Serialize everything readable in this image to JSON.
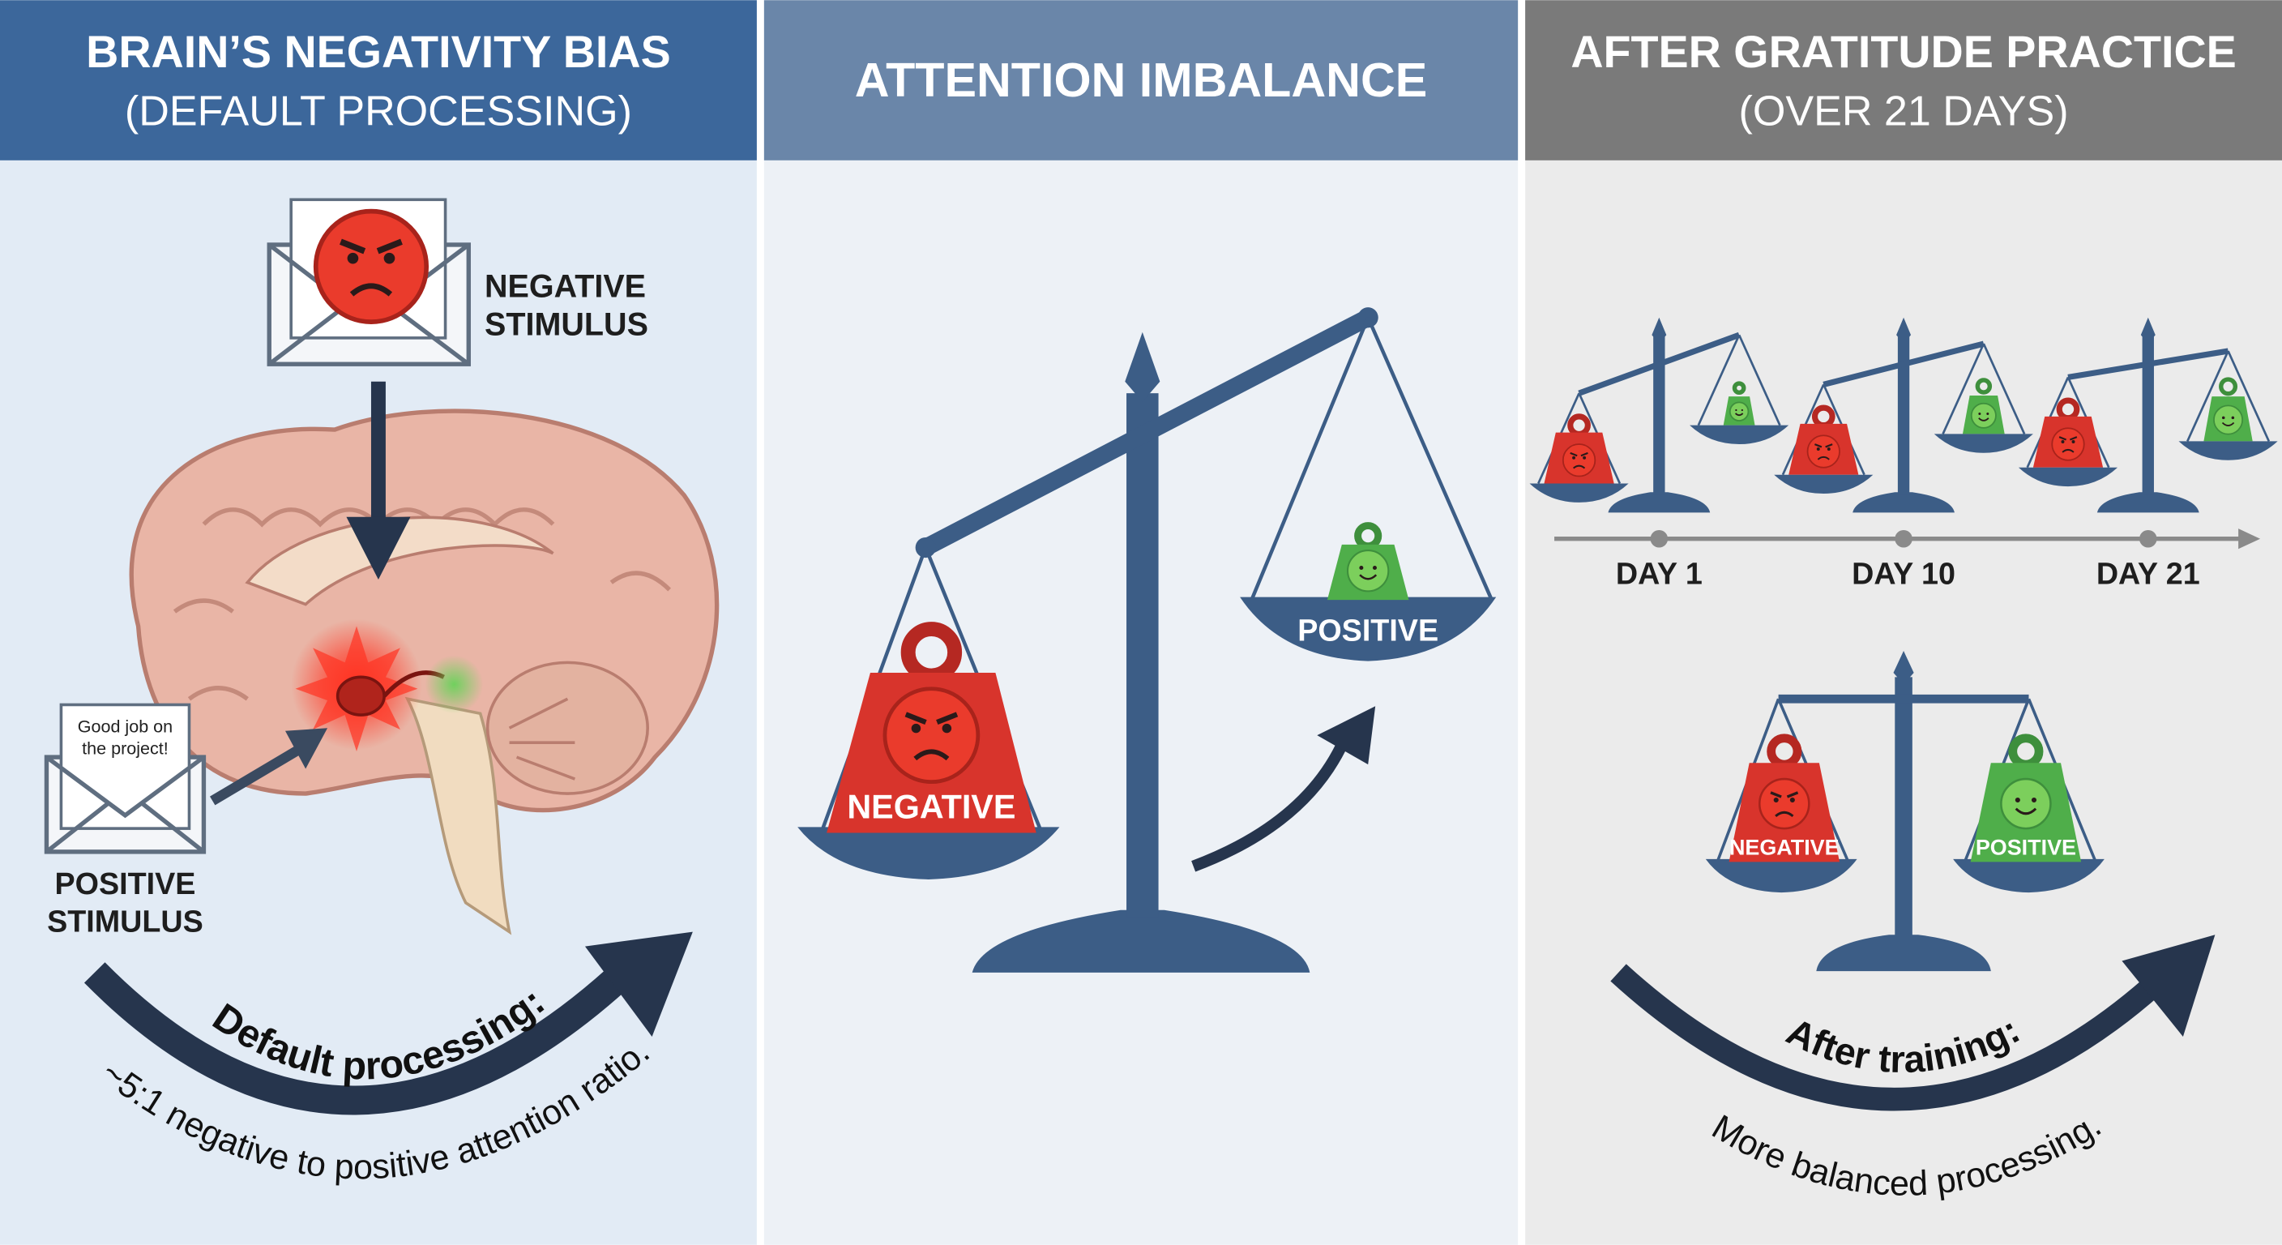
{
  "panels": [
    {
      "title": "BRAIN’S NEGATIVITY BIAS",
      "subtitle": "(DEFAULT PROCESSING)",
      "negative_stimulus": [
        "NEGATIVE",
        "STIMULUS"
      ],
      "message": [
        "Good job on",
        "the project!"
      ],
      "positive_stimulus": [
        "POSITIVE",
        "STIMULUS"
      ],
      "caption_heading": "Default processing:",
      "caption_text": "~5:1 negative to positive attention ratio."
    },
    {
      "title": "ATTENTION IMBALANCE",
      "negative_weight": "NEGATIVE",
      "positive_weight": "POSITIVE"
    },
    {
      "title": "AFTER GRATITUDE PRACTICE",
      "subtitle": "(OVER 21 DAYS)",
      "days": [
        "DAY 1",
        "DAY 10",
        "DAY 21"
      ],
      "negative_weight": "NEGATIVE",
      "positive_weight": "POSITIVE",
      "caption_heading": "After training:",
      "caption_text": "More balanced processing."
    }
  ]
}
